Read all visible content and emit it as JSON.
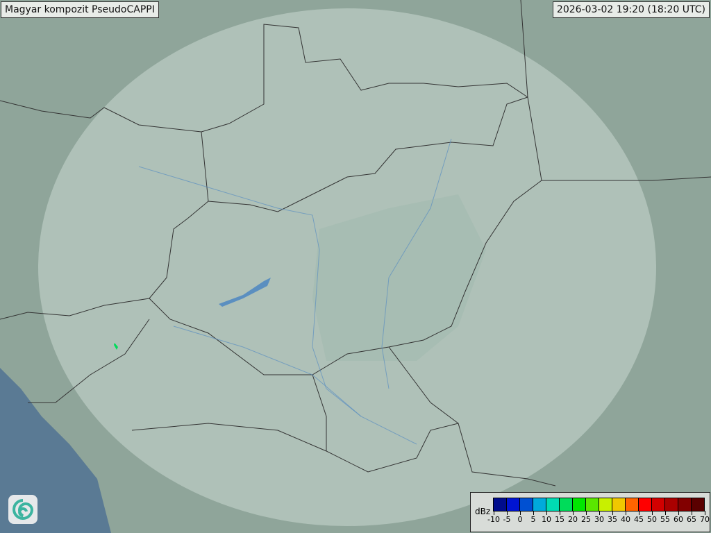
{
  "header": {
    "title": "Magyar kompozit  PseudoCAPPI",
    "timestamp": "2026-03-02 19:20 (18:20 UTC)"
  },
  "logo": {
    "icon": "swirl-logo-icon"
  },
  "legend": {
    "unit": "dBz",
    "ticks": [
      "-10",
      "-5",
      "0",
      "5",
      "10",
      "15",
      "20",
      "25",
      "30",
      "35",
      "40",
      "45",
      "50",
      "55",
      "60",
      "65",
      "70"
    ],
    "colors": [
      "#000c8c",
      "#0014d2",
      "#0050d2",
      "#00aadc",
      "#00dcb4",
      "#00dc5a",
      "#00e600",
      "#5ae600",
      "#c8f000",
      "#f0c800",
      "#ff6400",
      "#ff0000",
      "#d20000",
      "#aa0000",
      "#820000",
      "#5a0000"
    ]
  },
  "map": {
    "terrain_color": "#8fa59a",
    "radar_coverage_color": "#cfdcd6",
    "sea_color": "#5a7a94",
    "border_color": "#333333",
    "river_color": "#5b8fc0",
    "echo_color": "#00dc5a"
  }
}
